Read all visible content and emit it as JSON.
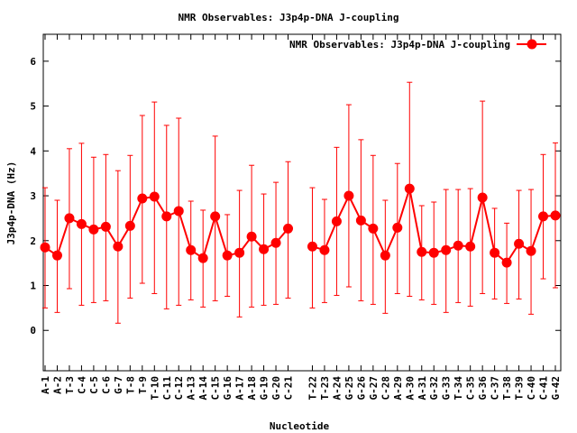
{
  "chart_data": {
    "type": "line",
    "title": "NMR Observables: J3p4p-DNA J-coupling",
    "xlabel": "Nucleotide",
    "ylabel": "J3p4p-DNA (Hz)",
    "ylim": [
      -0.9,
      6.6
    ],
    "yticks": [
      "0",
      "1",
      "2",
      "3",
      "4",
      "5",
      "6"
    ],
    "grid": false,
    "legend": {
      "label": "NMR Observables: J3p4p-DNA J-coupling",
      "placement": "top-right"
    },
    "series_color": "#ff0000",
    "categories": [
      "A-1",
      "A-2",
      "T-3",
      "C-4",
      "C-5",
      "C-6",
      "G-7",
      "T-8",
      "T-9",
      "T-10",
      "C-11",
      "C-12",
      "A-13",
      "A-14",
      "C-15",
      "G-16",
      "A-17",
      "A-18",
      "G-19",
      "G-20",
      "C-21",
      "T-22",
      "T-23",
      "A-24",
      "G-25",
      "G-26",
      "G-27",
      "C-28",
      "A-29",
      "A-30",
      "A-31",
      "G-32",
      "G-33",
      "T-34",
      "C-35",
      "G-36",
      "C-37",
      "T-38",
      "T-39",
      "C-40",
      "C-41",
      "G-42"
    ],
    "series": [
      {
        "name": "NMR Observables: J3p4p-DNA J-coupling",
        "values": [
          1.85,
          1.67,
          2.5,
          2.37,
          2.25,
          2.31,
          1.87,
          2.33,
          2.94,
          2.98,
          2.54,
          2.66,
          1.79,
          1.61,
          2.54,
          1.67,
          1.73,
          2.09,
          1.81,
          1.95,
          2.27,
          1.87,
          1.79,
          2.43,
          3.0,
          2.45,
          2.27,
          1.67,
          2.29,
          3.16,
          1.75,
          1.73,
          1.79,
          1.89,
          1.87,
          2.96,
          1.73,
          1.51,
          1.93,
          1.77,
          2.54,
          2.56
        ],
        "err_high": [
          3.18,
          2.9,
          4.05,
          4.17,
          3.86,
          3.92,
          3.56,
          3.9,
          4.79,
          5.09,
          4.57,
          4.73,
          2.88,
          2.68,
          4.33,
          2.58,
          3.12,
          3.68,
          3.04,
          3.3,
          3.76,
          3.18,
          2.92,
          4.08,
          5.03,
          4.25,
          3.9,
          2.9,
          3.72,
          5.53,
          2.78,
          2.86,
          3.14,
          3.14,
          3.16,
          5.11,
          2.72,
          2.39,
          3.12,
          3.14,
          3.92,
          4.18
        ],
        "err_low": [
          0.5,
          0.4,
          0.93,
          0.56,
          0.62,
          0.66,
          0.16,
          0.72,
          1.05,
          0.82,
          0.48,
          0.56,
          0.68,
          0.52,
          0.66,
          0.76,
          0.3,
          0.52,
          0.56,
          0.58,
          0.72,
          0.5,
          0.62,
          0.78,
          0.97,
          0.66,
          0.58,
          0.38,
          0.82,
          0.76,
          0.68,
          0.58,
          0.4,
          0.62,
          0.54,
          0.82,
          0.7,
          0.6,
          0.7,
          0.36,
          1.15,
          0.95
        ]
      }
    ],
    "segment_break_after": "C-21"
  }
}
